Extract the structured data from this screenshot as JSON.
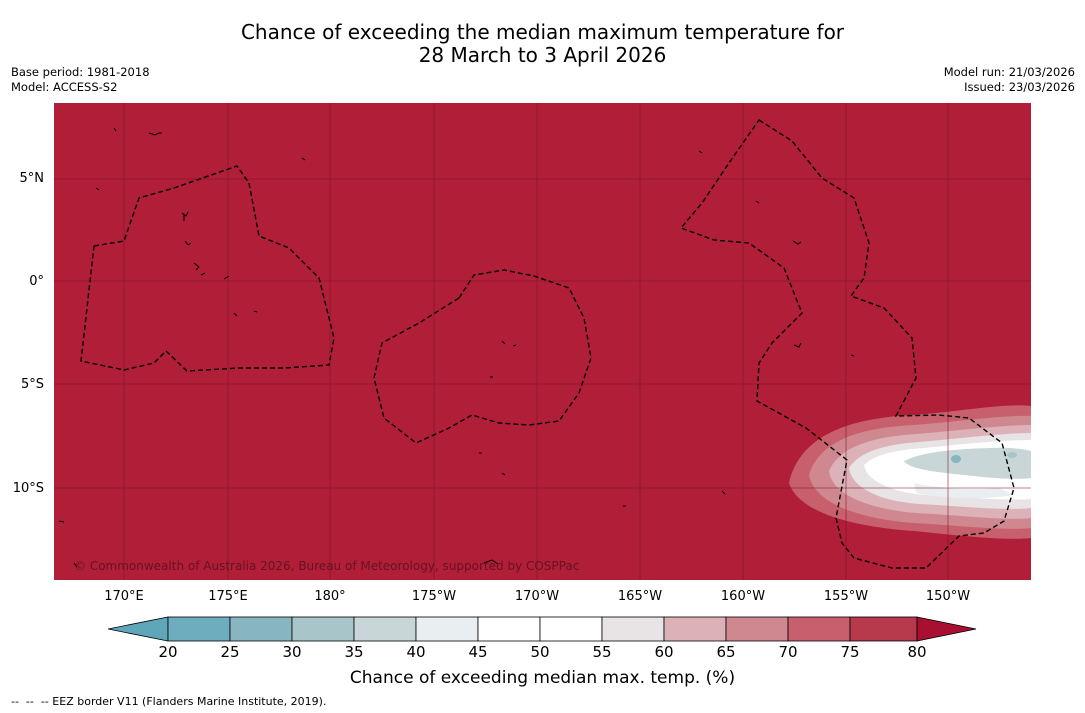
{
  "title": {
    "line1": "Chance of exceeding the median maximum temperature for",
    "line2": "28 March to 3 April 2026"
  },
  "meta": {
    "base_period": "Base period: 1981-2018",
    "model": "Model: ACCESS-S2",
    "model_run": "Model run: 21/03/2026",
    "issued": "Issued: 23/03/2026"
  },
  "map": {
    "background_color": "#b11e37",
    "latitude_labels": [
      "5°N",
      "0°",
      "5°S",
      "10°S"
    ],
    "longitude_labels": [
      "170°E",
      "175°E",
      "180°",
      "175°W",
      "170°W",
      "165°W",
      "160°W",
      "155°W",
      "150°W"
    ],
    "copyright": "© Commonwealth of Australia 2026, Bureau of Meteorology, supported by COSPPac"
  },
  "colorbar": {
    "ticks": [
      "20",
      "25",
      "30",
      "35",
      "40",
      "45",
      "50",
      "55",
      "60",
      "65",
      "70",
      "75",
      "80"
    ],
    "colors": [
      "#5fa7b8",
      "#6eadbd",
      "#88b6c0",
      "#a8c5ca",
      "#c9d6d8",
      "#e9eef0",
      "#ffffff",
      "#ffffff",
      "#e8e3e4",
      "#dcb2b8",
      "#d08890",
      "#c7606c",
      "#b63a4c",
      "#a90f30"
    ],
    "label": "Chance of exceeding median max. temp. (%)"
  },
  "footnote": "--  --  -- EEZ border V11 (Flanders Marine Institute, 2019)."
}
